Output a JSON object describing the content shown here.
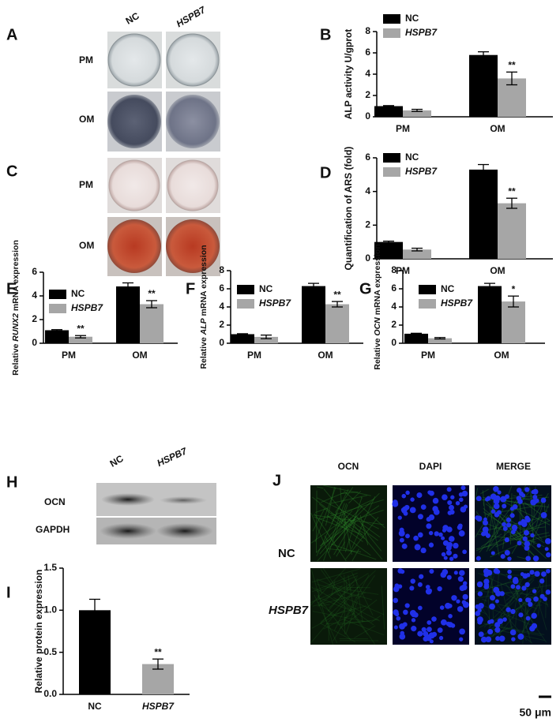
{
  "panel_labels": [
    "A",
    "B",
    "C",
    "D",
    "E",
    "F",
    "G",
    "H",
    "I",
    "J"
  ],
  "panel_a": {
    "columns": [
      "NC",
      "HSPB7"
    ],
    "rows": [
      "PM",
      "OM"
    ]
  },
  "panel_c": {
    "rows": [
      "PM",
      "OM"
    ]
  },
  "panel_h": {
    "columns": [
      "NC",
      "HSPB7"
    ],
    "rows": [
      "OCN",
      "GAPDH"
    ]
  },
  "panel_j": {
    "columns": [
      "OCN",
      "DAPI",
      "MERGE"
    ],
    "rows": [
      "NC",
      "HSPB7"
    ],
    "scale_bar": "50 μm"
  },
  "chart_data": [
    {
      "type": "bar",
      "ylabel": "ALP activity U/gprot",
      "categories": [
        "PM",
        "OM"
      ],
      "ylim": [
        0,
        8
      ],
      "yticks": [
        0,
        2,
        4,
        6,
        8
      ],
      "series": [
        {
          "name": "NC",
          "color": "#000000",
          "values": [
            1.0,
            5.8
          ],
          "errors": [
            0.05,
            0.3
          ],
          "significance": [
            null,
            null
          ]
        },
        {
          "name": "HSPB7",
          "color": "#a6a6a6",
          "values": [
            0.6,
            3.6
          ],
          "errors": [
            0.1,
            0.6
          ],
          "significance": [
            null,
            "**"
          ]
        }
      ]
    },
    {
      "type": "bar",
      "ylabel": "Quantification of ARS (fold)",
      "categories": [
        "PM",
        "OM"
      ],
      "ylim": [
        0,
        6
      ],
      "yticks": [
        0,
        2,
        4,
        6
      ],
      "series": [
        {
          "name": "NC",
          "color": "#000000",
          "values": [
            1.0,
            5.3
          ],
          "errors": [
            0.05,
            0.3
          ],
          "significance": [
            null,
            null
          ]
        },
        {
          "name": "HSPB7",
          "color": "#a6a6a6",
          "values": [
            0.55,
            3.3
          ],
          "errors": [
            0.08,
            0.3
          ],
          "significance": [
            null,
            "**"
          ]
        }
      ]
    },
    {
      "type": "bar",
      "ylabel": [
        "Relative ",
        "RUNX2",
        " mRNA expression"
      ],
      "categories": [
        "PM",
        "OM"
      ],
      "ylim": [
        0,
        6
      ],
      "yticks": [
        0,
        2,
        4,
        6
      ],
      "series": [
        {
          "name": "NC",
          "color": "#000000",
          "values": [
            1.1,
            4.8
          ],
          "errors": [
            0.05,
            0.3
          ],
          "significance": [
            null,
            null
          ]
        },
        {
          "name": "HSPB7",
          "color": "#a6a6a6",
          "values": [
            0.55,
            3.3
          ],
          "errors": [
            0.1,
            0.3
          ],
          "significance": [
            "**",
            "**"
          ]
        }
      ]
    },
    {
      "type": "bar",
      "ylabel": [
        "Relative ",
        "ALP",
        " mRNA expression"
      ],
      "categories": [
        "PM",
        "OM"
      ],
      "ylim": [
        0,
        8
      ],
      "yticks": [
        0,
        2,
        4,
        6,
        8
      ],
      "series": [
        {
          "name": "NC",
          "color": "#000000",
          "values": [
            1.0,
            6.3
          ],
          "errors": [
            0.05,
            0.3
          ],
          "significance": [
            null,
            null
          ]
        },
        {
          "name": "HSPB7",
          "color": "#a6a6a6",
          "values": [
            0.7,
            4.3
          ],
          "errors": [
            0.2,
            0.3
          ],
          "significance": [
            null,
            "**"
          ]
        }
      ]
    },
    {
      "type": "bar",
      "ylabel": [
        "Relative ",
        "OCN",
        " mRNA expression"
      ],
      "categories": [
        "PM",
        "OM"
      ],
      "ylim": [
        0,
        8
      ],
      "yticks": [
        0,
        2,
        4,
        6,
        8
      ],
      "series": [
        {
          "name": "NC",
          "color": "#000000",
          "values": [
            1.05,
            6.3
          ],
          "errors": [
            0.05,
            0.3
          ],
          "significance": [
            null,
            null
          ]
        },
        {
          "name": "HSPB7",
          "color": "#a6a6a6",
          "values": [
            0.55,
            4.6
          ],
          "errors": [
            0.08,
            0.6
          ],
          "significance": [
            null,
            "*"
          ]
        }
      ]
    },
    {
      "type": "bar",
      "ylabel": "Relative protein expression",
      "categories": [
        "NC",
        "HSPB7"
      ],
      "ylim": [
        0,
        1.5
      ],
      "yticks": [
        {
          "value": 0,
          "label": "0.0"
        },
        0.5,
        {
          "value": 1,
          "label": "1.0"
        },
        1.5
      ],
      "values": [
        1.0,
        0.36
      ],
      "errors": [
        0.13,
        0.06
      ],
      "significance": [
        null,
        "**"
      ],
      "colors": [
        "#000000",
        "#a6a6a6"
      ]
    }
  ]
}
